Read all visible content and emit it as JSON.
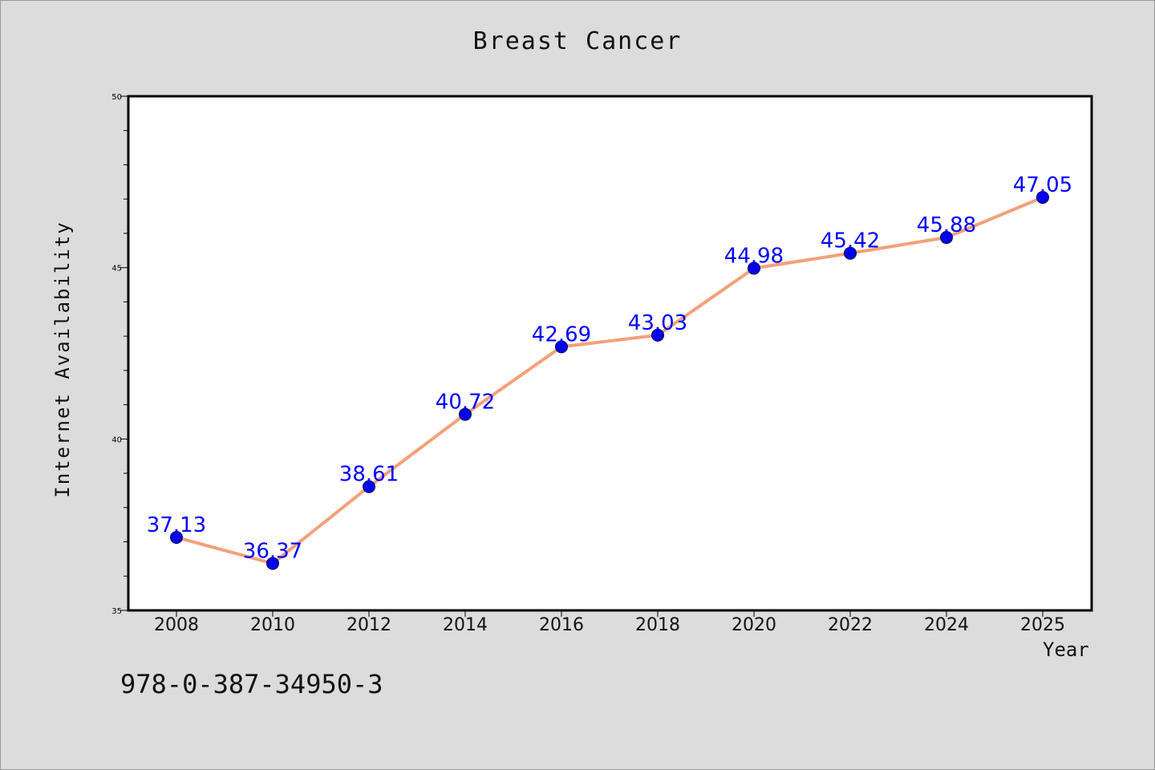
{
  "isbn": "978-0-387-34950-3",
  "chart_data": {
    "type": "line",
    "title": "Breast Cancer",
    "xlabel": "Year",
    "ylabel": "Internet Availability",
    "x": [
      "2008",
      "2010",
      "2012",
      "2014",
      "2016",
      "2018",
      "2020",
      "2022",
      "2024",
      "2025"
    ],
    "series": [
      {
        "values": [
          37.13,
          36.37,
          38.61,
          40.72,
          42.69,
          43.03,
          44.98,
          45.42,
          45.88,
          47.05
        ],
        "data_labels": [
          "37.13",
          "36.37",
          "38.61",
          "40.72",
          "42.69",
          "43.03",
          "44.98",
          "45.42",
          "45.88",
          "47.05"
        ]
      }
    ],
    "ylim": [
      35,
      50
    ],
    "yticks": [
      35,
      40,
      45,
      50
    ],
    "ytick_labels": [
      "35",
      "40",
      "45",
      "50"
    ],
    "minor_yticks": [
      36,
      37,
      38,
      39,
      41,
      42,
      43,
      44,
      46,
      47,
      48,
      49
    ],
    "grid": false,
    "colors": {
      "line": "#f4a07a",
      "marker": "#0000ee",
      "data_label": "#0000ff",
      "plot_background": "#ffffff",
      "figure_background": "#dcdcdc"
    }
  }
}
